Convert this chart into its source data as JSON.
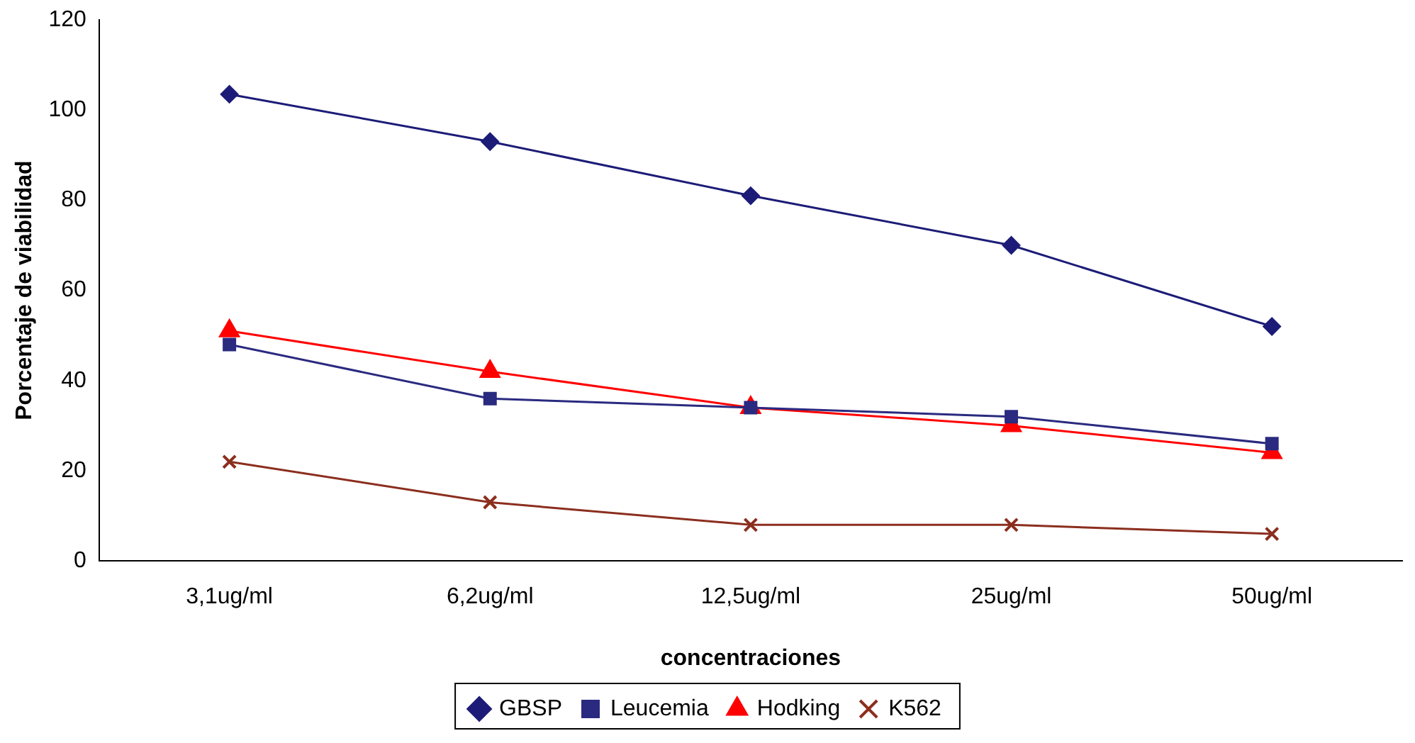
{
  "chart_data": {
    "type": "line",
    "xlabel": "concentraciones",
    "ylabel": "Porcentaje de viabilidad",
    "categories": [
      "3,1ug/ml",
      "6,2ug/ml",
      "12,5ug/ml",
      "25ug/ml",
      "50ug/ml"
    ],
    "series": [
      {
        "name": "GBSP",
        "color": "#1c1c78",
        "marker": "diamond",
        "values": [
          103.5,
          93,
          81,
          70,
          52
        ]
      },
      {
        "name": "Leucemia",
        "color": "#2a2a80",
        "marker": "square",
        "values": [
          48,
          36,
          34,
          32,
          26
        ]
      },
      {
        "name": "Hodking",
        "color": "#ff0000",
        "marker": "triangle",
        "values": [
          51,
          42,
          34,
          30,
          24
        ]
      },
      {
        "name": "K562",
        "color": "#8b2e1e",
        "marker": "cross",
        "values": [
          22,
          13,
          8,
          8,
          6
        ]
      }
    ],
    "ylim": [
      0,
      120
    ],
    "yticks": [
      0,
      20,
      40,
      60,
      80,
      100,
      120
    ],
    "legend": "bottom"
  }
}
